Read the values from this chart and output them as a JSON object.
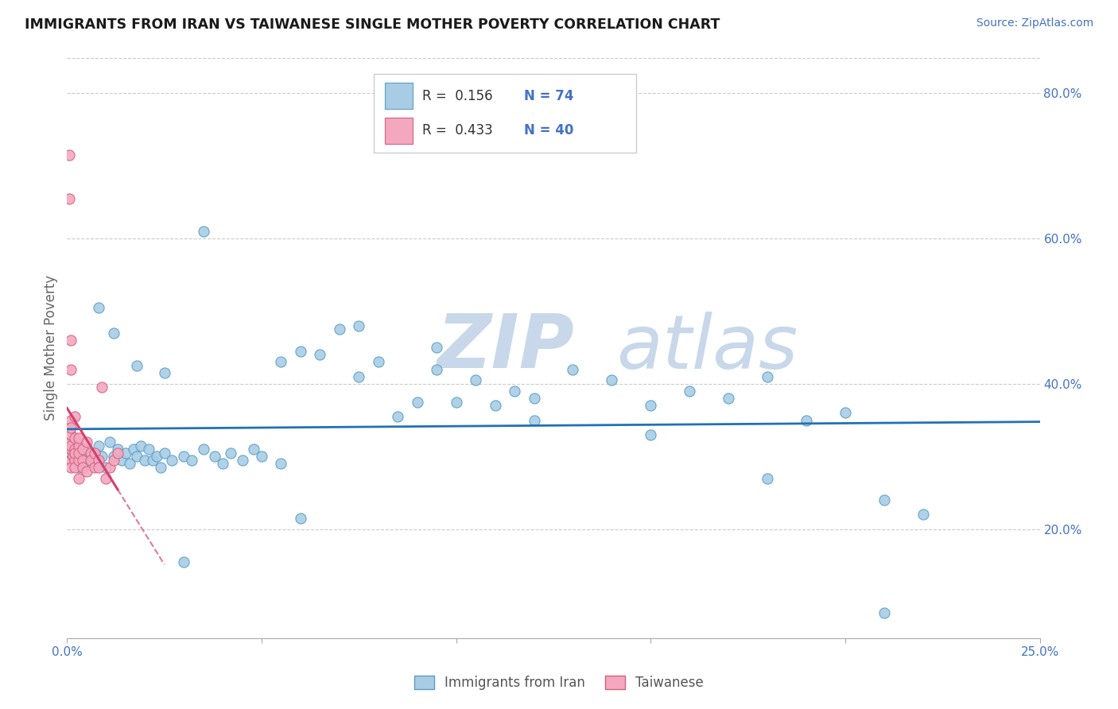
{
  "title": "IMMIGRANTS FROM IRAN VS TAIWANESE SINGLE MOTHER POVERTY CORRELATION CHART",
  "source_text": "Source: ZipAtlas.com",
  "ylabel": "Single Mother Poverty",
  "x_min": 0.0,
  "x_max": 0.25,
  "y_min": 0.05,
  "y_max": 0.85,
  "blue_color": "#a8cce4",
  "blue_edge_color": "#5a9ec9",
  "blue_line_color": "#2171b5",
  "pink_color": "#f4a8bf",
  "pink_edge_color": "#d46080",
  "pink_line_color": "#d44070",
  "legend_text_color": "#4472c4",
  "label_color": "#4472c4",
  "ylabel_color": "#666666",
  "grid_color": "#cccccc",
  "watermark_color": "#c8d8ea",
  "blue_scatter_x": [
    0.001,
    0.002,
    0.003,
    0.004,
    0.005,
    0.006,
    0.007,
    0.008,
    0.009,
    0.01,
    0.011,
    0.012,
    0.013,
    0.014,
    0.015,
    0.016,
    0.017,
    0.018,
    0.019,
    0.02,
    0.021,
    0.022,
    0.023,
    0.024,
    0.025,
    0.027,
    0.03,
    0.032,
    0.035,
    0.038,
    0.04,
    0.042,
    0.045,
    0.048,
    0.05,
    0.055,
    0.06,
    0.065,
    0.07,
    0.075,
    0.08,
    0.085,
    0.09,
    0.095,
    0.1,
    0.105,
    0.11,
    0.115,
    0.12,
    0.13,
    0.14,
    0.15,
    0.16,
    0.17,
    0.18,
    0.19,
    0.2,
    0.21,
    0.22,
    0.008,
    0.012,
    0.018,
    0.025,
    0.035,
    0.055,
    0.075,
    0.095,
    0.12,
    0.15,
    0.18,
    0.21,
    0.03,
    0.06
  ],
  "blue_scatter_y": [
    0.305,
    0.32,
    0.285,
    0.31,
    0.295,
    0.3,
    0.29,
    0.315,
    0.3,
    0.285,
    0.32,
    0.3,
    0.31,
    0.295,
    0.305,
    0.29,
    0.31,
    0.3,
    0.315,
    0.295,
    0.31,
    0.295,
    0.3,
    0.285,
    0.305,
    0.295,
    0.3,
    0.295,
    0.31,
    0.3,
    0.29,
    0.305,
    0.295,
    0.31,
    0.3,
    0.29,
    0.445,
    0.44,
    0.475,
    0.41,
    0.43,
    0.355,
    0.375,
    0.42,
    0.375,
    0.405,
    0.37,
    0.39,
    0.38,
    0.42,
    0.405,
    0.37,
    0.39,
    0.38,
    0.41,
    0.35,
    0.36,
    0.24,
    0.22,
    0.505,
    0.47,
    0.425,
    0.415,
    0.61,
    0.43,
    0.48,
    0.45,
    0.35,
    0.33,
    0.27,
    0.085,
    0.155,
    0.215
  ],
  "pink_scatter_x": [
    0.0005,
    0.0005,
    0.001,
    0.001,
    0.001,
    0.001,
    0.001,
    0.001,
    0.001,
    0.001,
    0.0015,
    0.002,
    0.002,
    0.002,
    0.002,
    0.002,
    0.002,
    0.003,
    0.003,
    0.003,
    0.003,
    0.003,
    0.004,
    0.004,
    0.004,
    0.005,
    0.005,
    0.006,
    0.006,
    0.007,
    0.007,
    0.008,
    0.008,
    0.009,
    0.01,
    0.011,
    0.012,
    0.013,
    0.001,
    0.001
  ],
  "pink_scatter_y": [
    0.715,
    0.655,
    0.32,
    0.31,
    0.33,
    0.315,
    0.295,
    0.285,
    0.35,
    0.34,
    0.3,
    0.31,
    0.295,
    0.285,
    0.325,
    0.355,
    0.305,
    0.315,
    0.295,
    0.325,
    0.27,
    0.305,
    0.31,
    0.295,
    0.285,
    0.28,
    0.32,
    0.305,
    0.295,
    0.285,
    0.305,
    0.295,
    0.285,
    0.395,
    0.27,
    0.285,
    0.295,
    0.305,
    0.42,
    0.46
  ]
}
